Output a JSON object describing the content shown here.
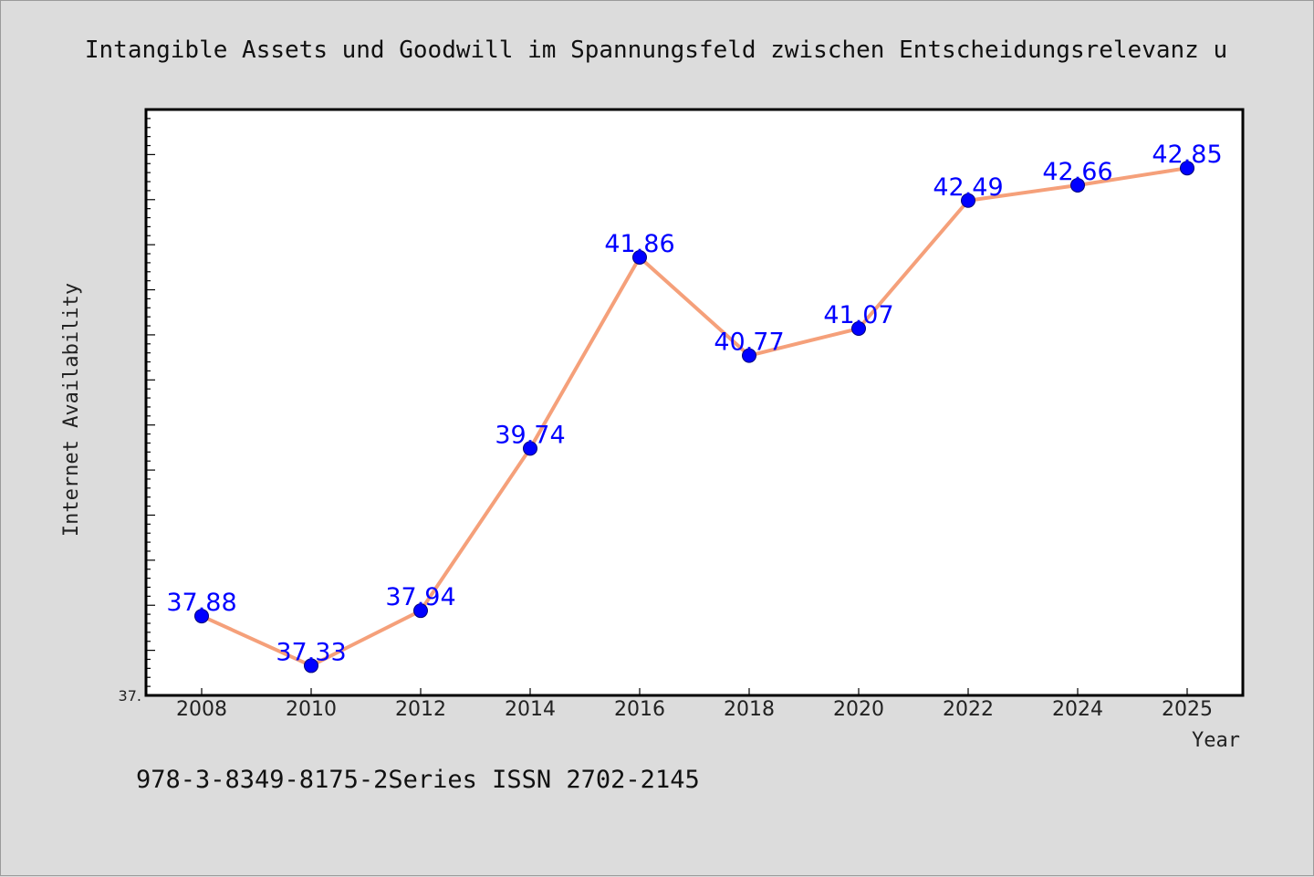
{
  "chart_data": {
    "type": "line",
    "title": "Intangible Assets und Goodwill im Spannungsfeld zwischen Entscheidungsrelevanz u",
    "xlabel": "Year",
    "ylabel": "Internet Availability",
    "x": [
      "2008",
      "2010",
      "2012",
      "2014",
      "2016",
      "2018",
      "2020",
      "2022",
      "2024",
      "2025"
    ],
    "series": [
      {
        "values": [
          37.88,
          37.33,
          37.94,
          39.74,
          41.86,
          40.77,
          41.07,
          42.49,
          42.66,
          42.85
        ],
        "labels": [
          "37.88",
          "37.33",
          "37.94",
          "39.74",
          "41.86",
          "40.77",
          "41.07",
          "42.49",
          "42.66",
          "42.85"
        ]
      }
    ],
    "ylim": [
      37.0,
      43.5
    ],
    "y_tick_label": "37.",
    "grid": false,
    "line_color": "#f5a07a",
    "marker_color": "#0000ff",
    "label_color": "#0000ff"
  },
  "footer": {
    "text": "978-3-8349-8175-2Series ISSN 2702-2145"
  }
}
